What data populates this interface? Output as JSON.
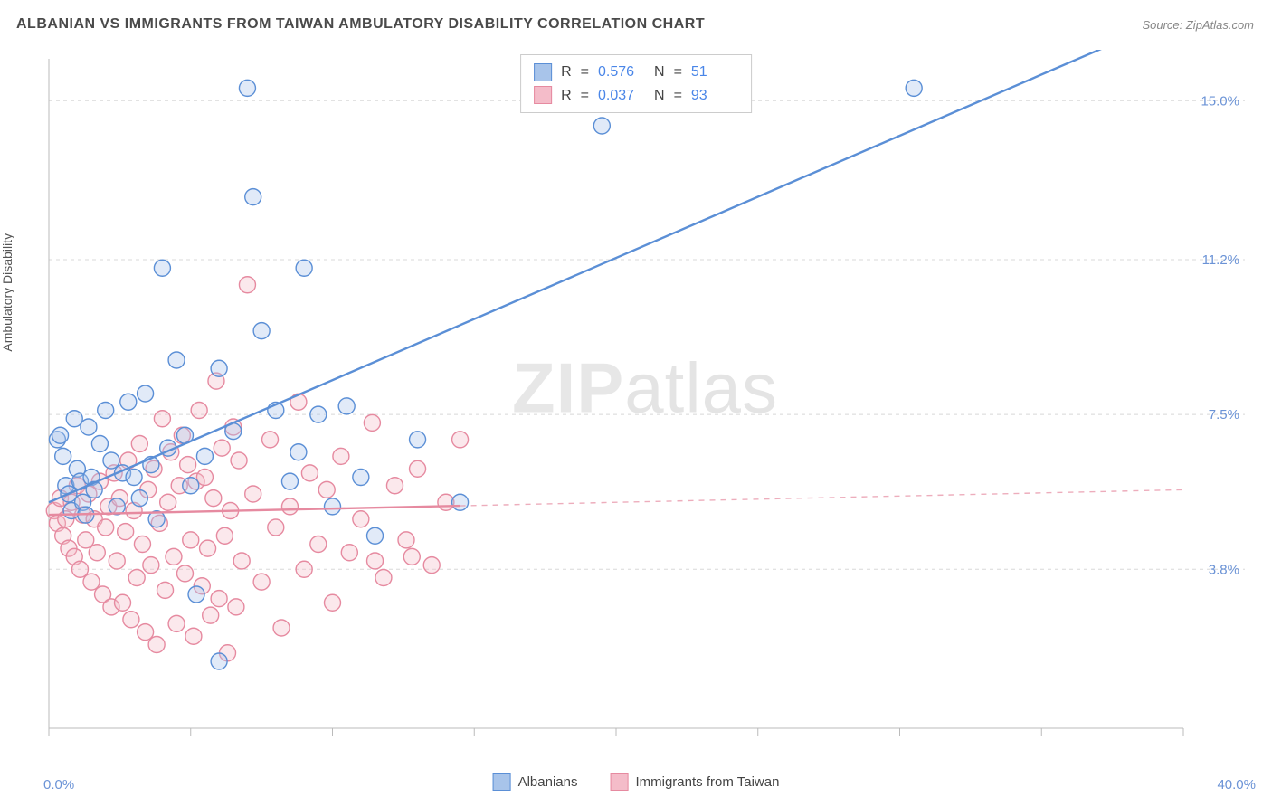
{
  "title": "ALBANIAN VS IMMIGRANTS FROM TAIWAN AMBULATORY DISABILITY CORRELATION CHART",
  "source": "Source: ZipAtlas.com",
  "ylabel": "Ambulatory Disability",
  "watermark_a": "ZIP",
  "watermark_b": "atlas",
  "chart": {
    "type": "scatter",
    "xlim": [
      0,
      40
    ],
    "ylim": [
      0,
      16
    ],
    "xticks": [
      0,
      5,
      10,
      15,
      20,
      25,
      30,
      35,
      40
    ],
    "yticks_right": [
      {
        "v": 3.8,
        "label": "3.8%"
      },
      {
        "v": 7.5,
        "label": "7.5%"
      },
      {
        "v": 11.2,
        "label": "11.2%"
      },
      {
        "v": 15.0,
        "label": "15.0%"
      }
    ],
    "x_axis_min_label": "0.0%",
    "x_axis_max_label": "40.0%",
    "grid_color": "#d8d8d8",
    "axis_color": "#bbbbbb",
    "background_color": "#ffffff",
    "marker_radius": 9,
    "marker_stroke_width": 1.4,
    "marker_fill_opacity": 0.35,
    "line_width": 2.4,
    "series": [
      {
        "name": "Albanians",
        "color_stroke": "#5b8fd6",
        "color_fill": "#a8c4ea",
        "R": "0.576",
        "N": "51",
        "trend": {
          "x1": 0,
          "y1": 5.4,
          "x2": 38,
          "y2": 16.5,
          "solid_split_x": 38
        },
        "points": [
          [
            0.3,
            6.9
          ],
          [
            0.4,
            7.0
          ],
          [
            0.5,
            6.5
          ],
          [
            0.6,
            5.8
          ],
          [
            0.7,
            5.6
          ],
          [
            0.8,
            5.2
          ],
          [
            0.9,
            7.4
          ],
          [
            1.0,
            6.2
          ],
          [
            1.1,
            5.9
          ],
          [
            1.2,
            5.4
          ],
          [
            1.3,
            5.1
          ],
          [
            1.4,
            7.2
          ],
          [
            1.5,
            6.0
          ],
          [
            1.6,
            5.7
          ],
          [
            1.8,
            6.8
          ],
          [
            2.0,
            7.6
          ],
          [
            2.2,
            6.4
          ],
          [
            2.4,
            5.3
          ],
          [
            2.6,
            6.1
          ],
          [
            2.8,
            7.8
          ],
          [
            3.0,
            6.0
          ],
          [
            3.2,
            5.5
          ],
          [
            3.4,
            8.0
          ],
          [
            3.6,
            6.3
          ],
          [
            3.8,
            5.0
          ],
          [
            4.0,
            11.0
          ],
          [
            4.2,
            6.7
          ],
          [
            4.5,
            8.8
          ],
          [
            4.8,
            7.0
          ],
          [
            5.0,
            5.8
          ],
          [
            5.2,
            3.2
          ],
          [
            5.5,
            6.5
          ],
          [
            6.0,
            8.6
          ],
          [
            6.0,
            1.6
          ],
          [
            6.5,
            7.1
          ],
          [
            7.0,
            15.3
          ],
          [
            7.2,
            12.7
          ],
          [
            7.5,
            9.5
          ],
          [
            8.0,
            7.6
          ],
          [
            8.5,
            5.9
          ],
          [
            8.8,
            6.6
          ],
          [
            9.0,
            11.0
          ],
          [
            9.5,
            7.5
          ],
          [
            10.0,
            5.3
          ],
          [
            10.5,
            7.7
          ],
          [
            11.0,
            6.0
          ],
          [
            11.5,
            4.6
          ],
          [
            13.0,
            6.9
          ],
          [
            14.5,
            5.4
          ],
          [
            30.5,
            15.3
          ],
          [
            19.5,
            14.4
          ]
        ]
      },
      {
        "name": "Immigrants from Taiwan",
        "color_stroke": "#e68aa0",
        "color_fill": "#f4bcc9",
        "R": "0.037",
        "N": "93",
        "trend": {
          "x1": 0,
          "y1": 5.1,
          "x2": 40,
          "y2": 5.7,
          "solid_split_x": 14.5
        },
        "points": [
          [
            0.2,
            5.2
          ],
          [
            0.3,
            4.9
          ],
          [
            0.4,
            5.5
          ],
          [
            0.5,
            4.6
          ],
          [
            0.6,
            5.0
          ],
          [
            0.7,
            4.3
          ],
          [
            0.8,
            5.4
          ],
          [
            0.9,
            4.1
          ],
          [
            1.0,
            5.8
          ],
          [
            1.1,
            3.8
          ],
          [
            1.2,
            5.1
          ],
          [
            1.3,
            4.5
          ],
          [
            1.4,
            5.6
          ],
          [
            1.5,
            3.5
          ],
          [
            1.6,
            5.0
          ],
          [
            1.7,
            4.2
          ],
          [
            1.8,
            5.9
          ],
          [
            1.9,
            3.2
          ],
          [
            2.0,
            4.8
          ],
          [
            2.1,
            5.3
          ],
          [
            2.2,
            2.9
          ],
          [
            2.3,
            6.1
          ],
          [
            2.4,
            4.0
          ],
          [
            2.5,
            5.5
          ],
          [
            2.6,
            3.0
          ],
          [
            2.7,
            4.7
          ],
          [
            2.8,
            6.4
          ],
          [
            2.9,
            2.6
          ],
          [
            3.0,
            5.2
          ],
          [
            3.1,
            3.6
          ],
          [
            3.2,
            6.8
          ],
          [
            3.3,
            4.4
          ],
          [
            3.4,
            2.3
          ],
          [
            3.5,
            5.7
          ],
          [
            3.6,
            3.9
          ],
          [
            3.7,
            6.2
          ],
          [
            3.8,
            2.0
          ],
          [
            3.9,
            4.9
          ],
          [
            4.0,
            7.4
          ],
          [
            4.1,
            3.3
          ],
          [
            4.2,
            5.4
          ],
          [
            4.3,
            6.6
          ],
          [
            4.4,
            4.1
          ],
          [
            4.5,
            2.5
          ],
          [
            4.6,
            5.8
          ],
          [
            4.7,
            7.0
          ],
          [
            4.8,
            3.7
          ],
          [
            4.9,
            6.3
          ],
          [
            5.0,
            4.5
          ],
          [
            5.1,
            2.2
          ],
          [
            5.2,
            5.9
          ],
          [
            5.3,
            7.6
          ],
          [
            5.4,
            3.4
          ],
          [
            5.5,
            6.0
          ],
          [
            5.6,
            4.3
          ],
          [
            5.7,
            2.7
          ],
          [
            5.8,
            5.5
          ],
          [
            5.9,
            8.3
          ],
          [
            6.0,
            3.1
          ],
          [
            6.1,
            6.7
          ],
          [
            6.2,
            4.6
          ],
          [
            6.3,
            1.8
          ],
          [
            6.4,
            5.2
          ],
          [
            6.5,
            7.2
          ],
          [
            6.6,
            2.9
          ],
          [
            6.7,
            6.4
          ],
          [
            6.8,
            4.0
          ],
          [
            7.0,
            10.6
          ],
          [
            7.2,
            5.6
          ],
          [
            7.5,
            3.5
          ],
          [
            7.8,
            6.9
          ],
          [
            8.0,
            4.8
          ],
          [
            8.2,
            2.4
          ],
          [
            8.5,
            5.3
          ],
          [
            8.8,
            7.8
          ],
          [
            9.0,
            3.8
          ],
          [
            9.2,
            6.1
          ],
          [
            9.5,
            4.4
          ],
          [
            9.8,
            5.7
          ],
          [
            10.0,
            3.0
          ],
          [
            10.3,
            6.5
          ],
          [
            10.6,
            4.2
          ],
          [
            11.0,
            5.0
          ],
          [
            11.4,
            7.3
          ],
          [
            11.8,
            3.6
          ],
          [
            12.2,
            5.8
          ],
          [
            12.6,
            4.5
          ],
          [
            13.0,
            6.2
          ],
          [
            13.5,
            3.9
          ],
          [
            14.0,
            5.4
          ],
          [
            11.5,
            4.0
          ],
          [
            12.8,
            4.1
          ],
          [
            14.5,
            6.9
          ]
        ]
      }
    ]
  },
  "legend": {
    "series1_label": "Albanians",
    "series2_label": "Immigrants from Taiwan"
  },
  "stats_labels": {
    "R": "R",
    "N": "N",
    "eq": "="
  }
}
